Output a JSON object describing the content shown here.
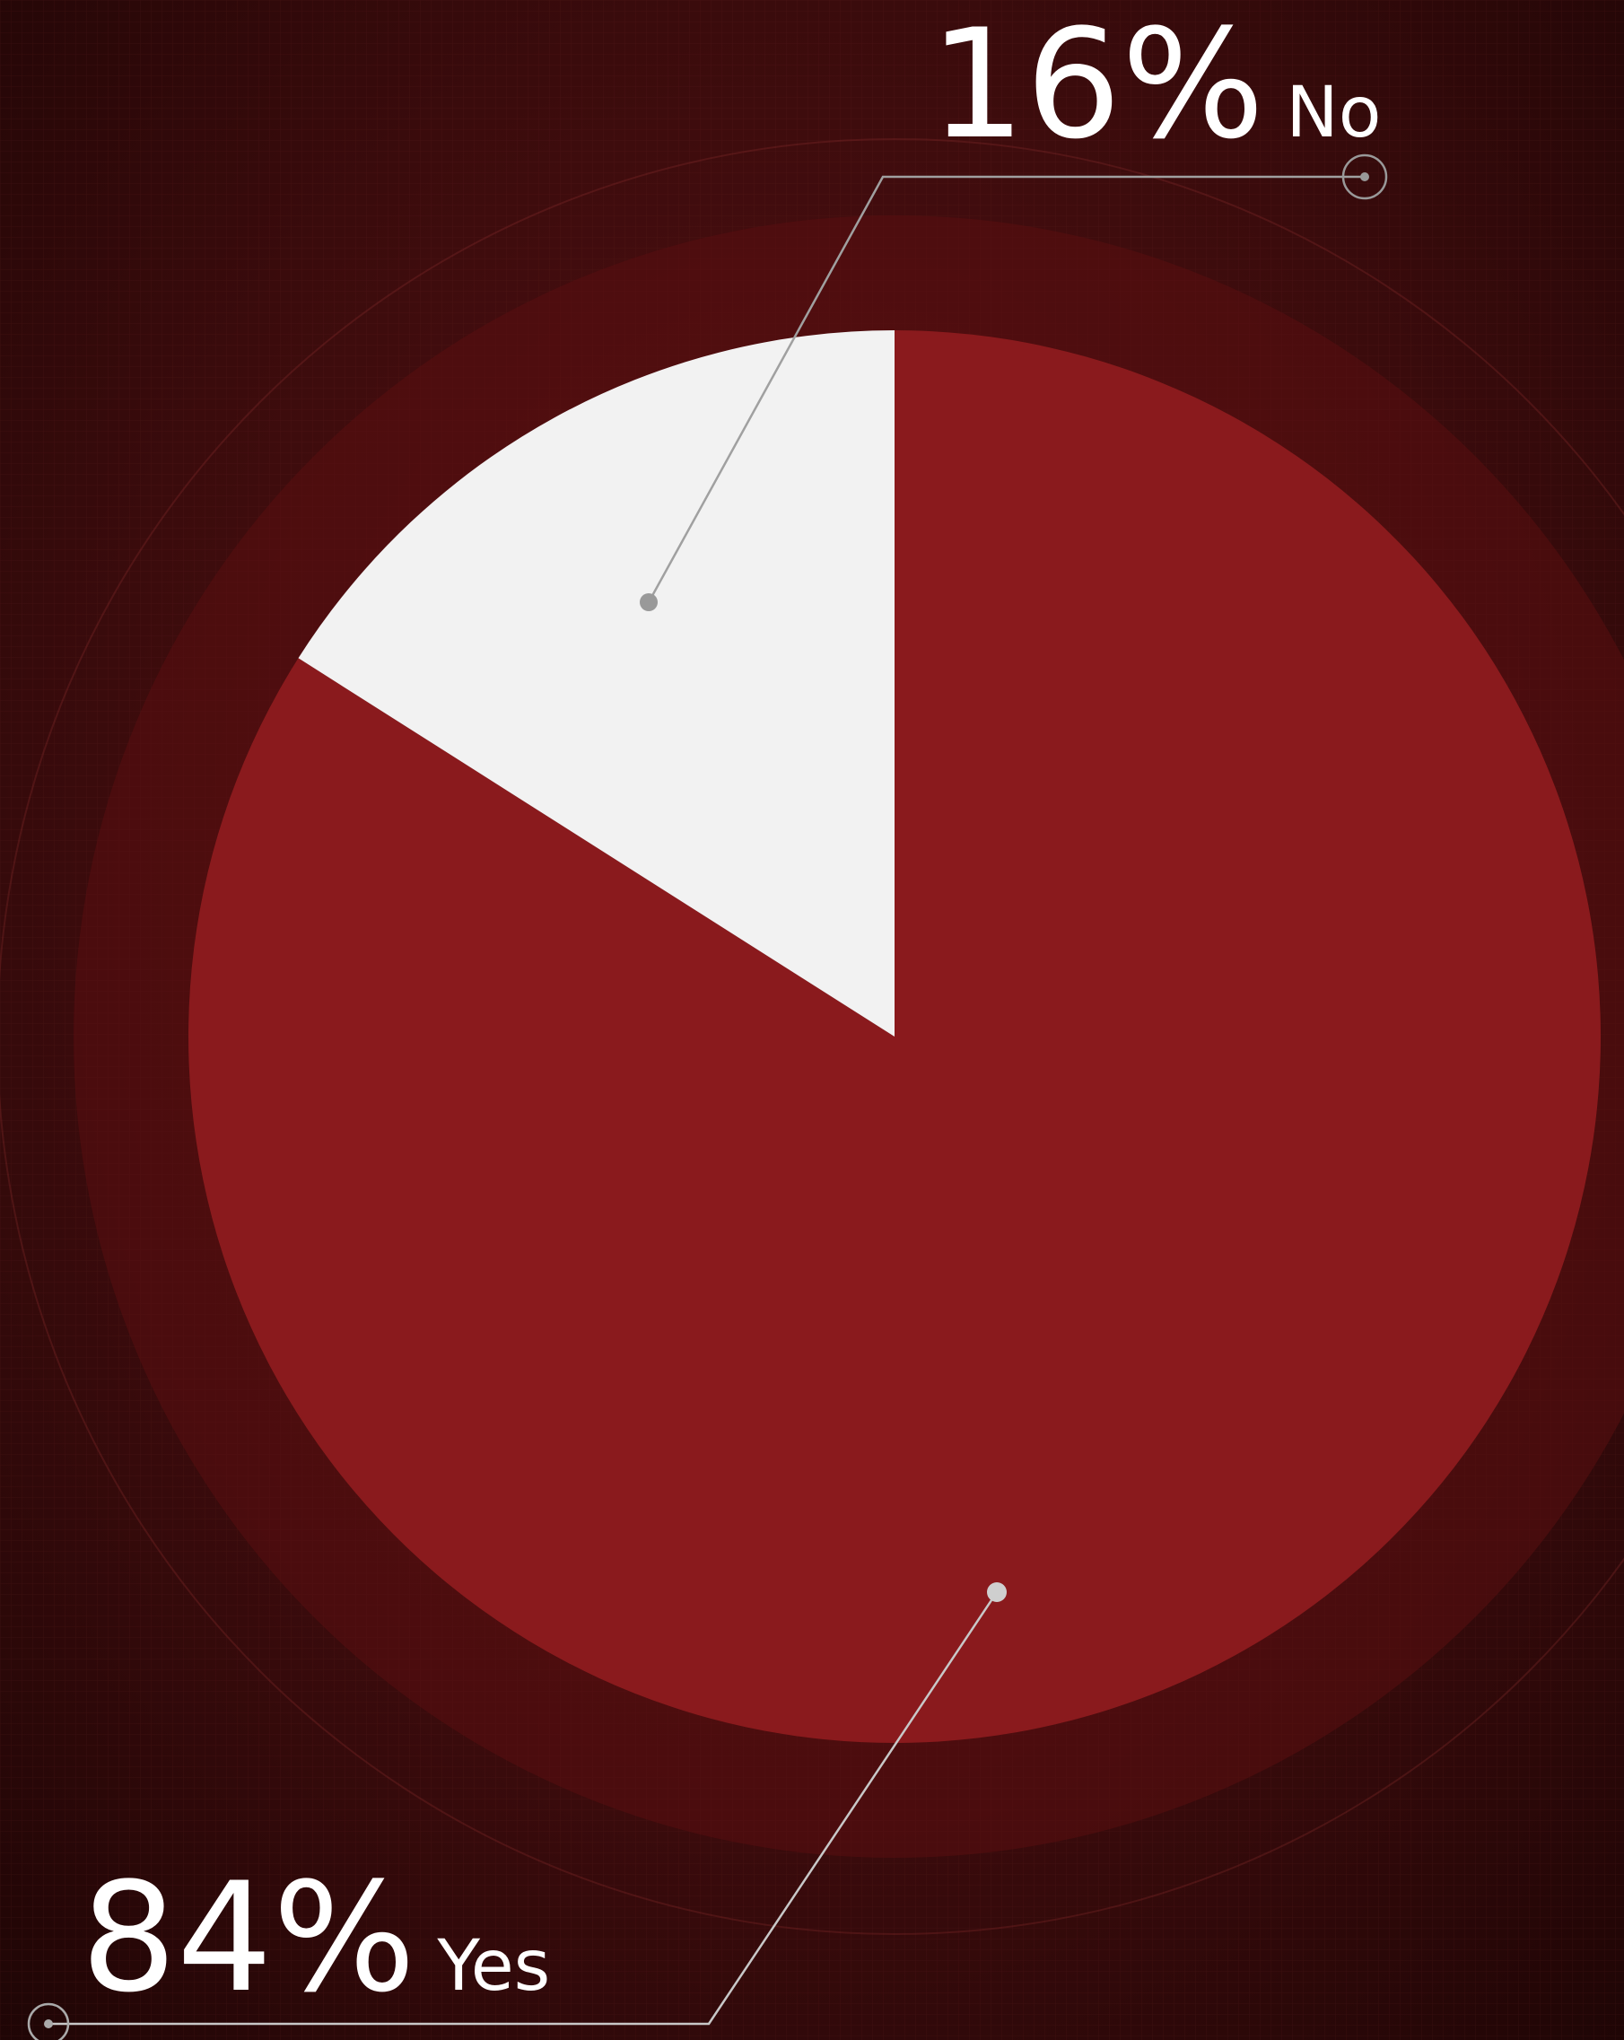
{
  "chart_data": {
    "type": "pie",
    "categories": [
      "Yes",
      "No"
    ],
    "values": [
      84,
      16
    ],
    "value_labels": [
      "84%",
      "16%"
    ],
    "colors": [
      "#8a1a1d",
      "#f2f2f2"
    ]
  }
}
